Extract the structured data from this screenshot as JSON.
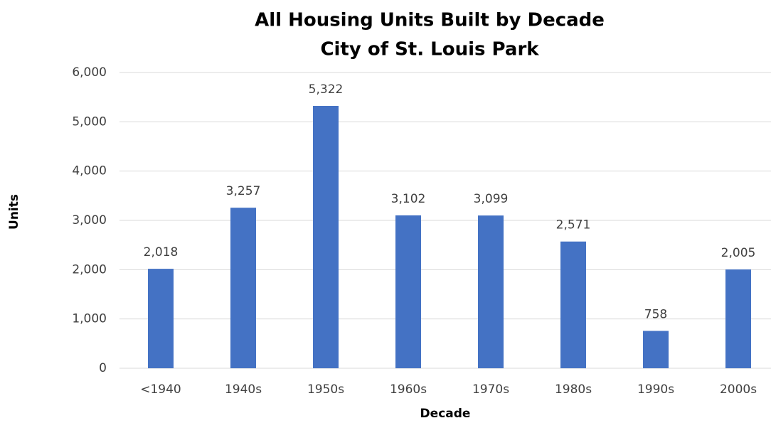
{
  "chart_data": {
    "type": "bar",
    "title": "All Housing Units Built by Decade",
    "subtitle": "City of St. Louis Park",
    "x_label": "Decade",
    "y_label": "Units",
    "categories": [
      "<1940",
      "1940s",
      "1950s",
      "1960s",
      "1970s",
      "1980s",
      "1990s",
      "2000s"
    ],
    "values": [
      2018,
      3257,
      5322,
      3102,
      3099,
      2571,
      758,
      2005
    ],
    "value_labels": [
      "2,018",
      "3,257",
      "5,322",
      "3,102",
      "3,099",
      "2,571",
      "758",
      "2,005"
    ],
    "color": "#4472c4",
    "ylim": [
      0,
      6000
    ],
    "yticks": [
      0,
      {
        "value": 1000,
        "label": "1,000"
      },
      {
        "value": 2000,
        "label": "2,000"
      },
      {
        "value": 3000,
        "label": "3,000"
      },
      {
        "value": 4000,
        "label": "4,000"
      },
      {
        "value": 5000,
        "label": "5,000"
      },
      {
        "value": 6000,
        "label": "6,000"
      }
    ],
    "grid": true
  }
}
